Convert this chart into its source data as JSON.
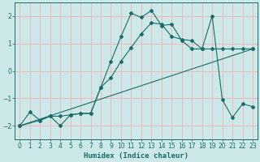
{
  "xlabel": "Humidex (Indice chaleur)",
  "background_color": "#cce8e8",
  "grid_color": "#f0b8b8",
  "line_color": "#1a6b6b",
  "xlim": [
    -0.5,
    23.5
  ],
  "ylim": [
    -2.5,
    2.5
  ],
  "xticks": [
    0,
    1,
    2,
    3,
    4,
    5,
    6,
    7,
    8,
    9,
    10,
    11,
    12,
    13,
    14,
    15,
    16,
    17,
    18,
    19,
    20,
    21,
    22,
    23
  ],
  "yticks": [
    -2,
    -1,
    0,
    1,
    2
  ],
  "line1_x": [
    0,
    1,
    2,
    3,
    4,
    5,
    6,
    7,
    8,
    9,
    10,
    11,
    12,
    13,
    14,
    15,
    16,
    17,
    18,
    19,
    20,
    21,
    22,
    23
  ],
  "line1_y": [
    -2.0,
    -1.5,
    -1.8,
    -1.65,
    -2.0,
    -1.6,
    -1.55,
    -1.55,
    -0.6,
    0.35,
    1.25,
    2.1,
    1.95,
    2.2,
    1.65,
    1.7,
    1.1,
    0.8,
    0.8,
    2.0,
    -1.05,
    -1.7,
    -1.2,
    -1.3
  ],
  "line2_x": [
    0,
    2,
    3,
    4,
    5,
    6,
    7,
    8,
    9,
    10,
    11,
    12,
    13,
    14,
    15,
    16,
    17,
    18,
    19,
    20,
    21,
    22,
    23
  ],
  "line2_y": [
    -2.0,
    -1.8,
    -1.65,
    -1.65,
    -1.6,
    -1.55,
    -1.55,
    -0.6,
    -0.25,
    0.35,
    0.85,
    1.35,
    1.75,
    1.7,
    1.25,
    1.15,
    1.1,
    0.8,
    0.8,
    0.8,
    0.8,
    0.8,
    0.8
  ],
  "line3_x": [
    0,
    23
  ],
  "line3_y": [
    -2.0,
    0.8
  ]
}
